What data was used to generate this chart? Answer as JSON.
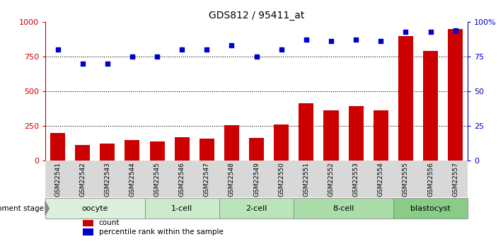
{
  "title": "GDS812 / 95411_at",
  "categories": [
    "GSM22541",
    "GSM22542",
    "GSM22543",
    "GSM22544",
    "GSM22545",
    "GSM22546",
    "GSM22547",
    "GSM22548",
    "GSM22549",
    "GSM22550",
    "GSM22551",
    "GSM22552",
    "GSM22553",
    "GSM22554",
    "GSM22555",
    "GSM22556",
    "GSM22557"
  ],
  "bar_values": [
    200,
    110,
    120,
    145,
    135,
    170,
    155,
    255,
    160,
    260,
    415,
    360,
    390,
    360,
    900,
    790,
    950
  ],
  "dot_values": [
    80,
    70,
    70,
    75,
    75,
    80,
    80,
    83,
    75,
    80,
    87,
    86,
    87,
    86,
    93,
    93,
    94
  ],
  "bar_color": "#cc0000",
  "dot_color": "#0000cc",
  "left_ylim": [
    0,
    1000
  ],
  "right_ylim": [
    0,
    100
  ],
  "left_yticks": [
    0,
    250,
    500,
    750,
    1000
  ],
  "right_yticks": [
    0,
    25,
    50,
    75,
    100
  ],
  "right_yticklabels": [
    "0",
    "25",
    "50",
    "75",
    "100%"
  ],
  "left_ylabel_color": "#cc0000",
  "right_ylabel_color": "#0000cc",
  "grid_lines": [
    250,
    500,
    750
  ],
  "groups": [
    {
      "label": "oocyte",
      "start": 0,
      "end": 3,
      "color": "#ddf0dd"
    },
    {
      "label": "1-cell",
      "start": 4,
      "end": 6,
      "color": "#cceacc"
    },
    {
      "label": "2-cell",
      "start": 7,
      "end": 9,
      "color": "#bbe4bb"
    },
    {
      "label": "8-cell",
      "start": 10,
      "end": 13,
      "color": "#aaddaa"
    },
    {
      "label": "blastocyst",
      "start": 14,
      "end": 16,
      "color": "#88cc88"
    }
  ],
  "dev_stage_label": "development stage",
  "legend_items": [
    {
      "label": "count",
      "color": "#cc0000"
    },
    {
      "label": "percentile rank within the sample",
      "color": "#0000cc"
    }
  ],
  "background_color": "#ffffff",
  "plot_bg_color": "#ffffff",
  "xtick_bg_color": "#d8d8d8",
  "bar_width": 0.6,
  "figsize": [
    7.11,
    3.45
  ],
  "dpi": 100
}
